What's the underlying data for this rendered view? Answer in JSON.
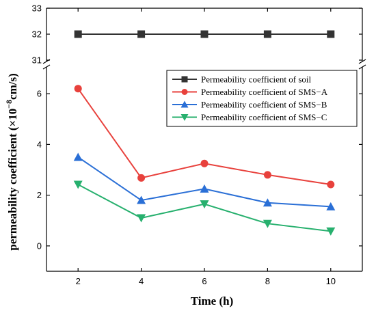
{
  "chart_data": {
    "type": "line",
    "title": "",
    "xlabel": "Time (h)",
    "ylabel": "permeability coefficient (×10",
    "ylabel_exponent": "−8",
    "ylabel_unit": "cm/s)",
    "x": [
      2,
      4,
      6,
      8,
      10
    ],
    "x_ticks": [
      "2",
      "4",
      "6",
      "8",
      "10"
    ],
    "xlim": [
      1,
      11
    ],
    "y_upper_range": [
      31,
      33
    ],
    "y_upper_ticks": [
      "31",
      "32",
      "33"
    ],
    "y_lower_range": [
      -1,
      7
    ],
    "y_lower_ticks": [
      "0",
      "2",
      "4",
      "6"
    ],
    "axis_break": true,
    "legend_position": "top-right",
    "grid": false,
    "series": [
      {
        "name": "Permeability coefficient of soil",
        "marker": "square",
        "color": "#333333",
        "values": [
          32,
          32,
          32,
          32,
          32
        ]
      },
      {
        "name": "Permeability coefficient of SMS−A",
        "marker": "circle",
        "color": "#e8413c",
        "values": [
          6.2,
          2.68,
          3.25,
          2.8,
          2.42
        ]
      },
      {
        "name": "Permeability coefficient of SMS−B",
        "marker": "triangle-up",
        "color": "#2a6fd6",
        "values": [
          3.5,
          1.8,
          2.25,
          1.7,
          1.55
        ]
      },
      {
        "name": "Permeability coefficient of SMS−C",
        "marker": "triangle-down",
        "color": "#27b06e",
        "values": [
          2.42,
          1.1,
          1.65,
          0.88,
          0.58
        ]
      }
    ]
  }
}
